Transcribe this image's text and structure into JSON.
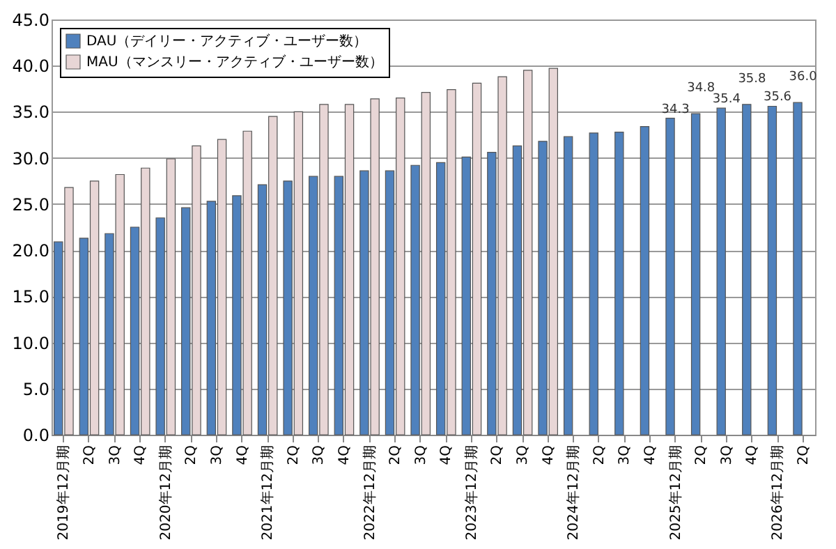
{
  "chart_data": {
    "type": "bar",
    "categories": [
      "2019年12月期",
      "2Q",
      "3Q",
      "4Q",
      "2020年12月期",
      "2Q",
      "3Q",
      "4Q",
      "2021年12月期",
      "2Q",
      "3Q",
      "4Q",
      "2022年12月期",
      "2Q",
      "3Q",
      "4Q",
      "2023年12月期",
      "2Q",
      "3Q",
      "4Q",
      "2024年12月期",
      "2Q",
      "3Q",
      "4Q",
      "2025年12月期",
      "2Q",
      "3Q",
      "4Q",
      "2026年12月期",
      "2Q"
    ],
    "series": [
      {
        "name": "DAU（デイリー・アクティブ・ユーザー数）",
        "color": "#4f81bd",
        "values": [
          20.9,
          21.3,
          21.8,
          22.5,
          23.5,
          24.6,
          25.3,
          25.9,
          27.1,
          27.5,
          28.0,
          28.0,
          28.6,
          28.6,
          29.2,
          29.5,
          30.1,
          30.6,
          31.3,
          31.8,
          32.3,
          32.7,
          32.8,
          33.4,
          34.3,
          34.8,
          35.4,
          35.8,
          35.6,
          36.0
        ],
        "value_labels": [
          null,
          null,
          null,
          null,
          null,
          null,
          null,
          null,
          null,
          null,
          null,
          null,
          null,
          null,
          null,
          null,
          null,
          null,
          null,
          null,
          null,
          null,
          null,
          null,
          "34.3",
          "34.8",
          "35.4",
          "35.8",
          "35.6",
          "36.0"
        ]
      },
      {
        "name": "MAU（マンスリー・アクティブ・ユーザー数）",
        "color": "#e8d6d6",
        "values": [
          26.8,
          27.5,
          28.2,
          28.9,
          29.9,
          31.3,
          32.0,
          32.9,
          34.5,
          35.0,
          35.8,
          35.8,
          36.4,
          36.5,
          37.1,
          37.4,
          38.1,
          38.8,
          39.5,
          39.7,
          null,
          null,
          null,
          null,
          null,
          null,
          null,
          null,
          null,
          null
        ]
      }
    ],
    "ylim": [
      0,
      45
    ],
    "yticks": [
      {
        "value": 0,
        "label": "0.0"
      },
      {
        "value": 5,
        "label": "5.0"
      },
      {
        "value": 10,
        "label": "10.0"
      },
      {
        "value": 15,
        "label": "15.0"
      },
      {
        "value": 20,
        "label": "20.0"
      },
      {
        "value": 25,
        "label": "25.0"
      },
      {
        "value": 30,
        "label": "30.0"
      },
      {
        "value": 35,
        "label": "35.0"
      },
      {
        "value": 40,
        "label": "40.0"
      },
      {
        "value": 45,
        "label": "45.0"
      }
    ],
    "grid": "y",
    "legend": "top left"
  }
}
